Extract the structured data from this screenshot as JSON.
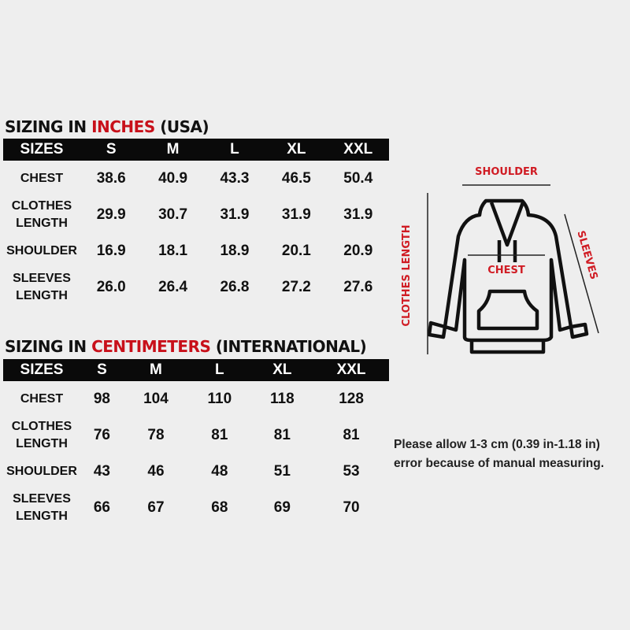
{
  "inches": {
    "title_pre": "SIZING IN ",
    "title_unit": "INCHES",
    "title_post": " (USA)",
    "headers": [
      "SIZES",
      "S",
      "M",
      "L",
      "XL",
      "XXL"
    ],
    "rows": [
      {
        "label": "CHEST",
        "values": [
          "38.6",
          "40.9",
          "43.3",
          "46.5",
          "50.4"
        ]
      },
      {
        "label": "CLOTHES LENGTH",
        "values": [
          "29.9",
          "30.7",
          "31.9",
          "31.9",
          "31.9"
        ]
      },
      {
        "label": "SHOULDER",
        "values": [
          "16.9",
          "18.1",
          "18.9",
          "20.1",
          "20.9"
        ]
      },
      {
        "label": "SLEEVES LENGTH",
        "values": [
          "26.0",
          "26.4",
          "26.8",
          "27.2",
          "27.6"
        ]
      }
    ]
  },
  "cm": {
    "title_pre": "SIZING IN ",
    "title_unit": "CENTIMETERS",
    "title_post": " (INTERNATIONAL)",
    "headers": [
      "SIZES",
      "S",
      "M",
      "L",
      "XL",
      "XXL"
    ],
    "rows": [
      {
        "label": "CHEST",
        "values": [
          "98",
          "104",
          "110",
          "118",
          "128"
        ]
      },
      {
        "label": "CLOTHES LENGTH",
        "values": [
          "76",
          "78",
          "81",
          "81",
          "81"
        ]
      },
      {
        "label": "SHOULDER",
        "values": [
          "43",
          "46",
          "48",
          "51",
          "53"
        ]
      },
      {
        "label": "SLEEVES LENGTH",
        "values": [
          "66",
          "67",
          "68",
          "69",
          "70"
        ]
      }
    ]
  },
  "diagram": {
    "shoulder": "SHOULDER",
    "chest": "CHEST",
    "length": "CLOTHES LENGTH",
    "sleeves": "SLEEVES"
  },
  "note": {
    "line1": "Please allow 1-3 cm (0.39 in-1.18 in)",
    "line2": "error because of manual measuring."
  },
  "colors": {
    "accent": "#c8101a",
    "header_bg": "#0a0a0a"
  }
}
